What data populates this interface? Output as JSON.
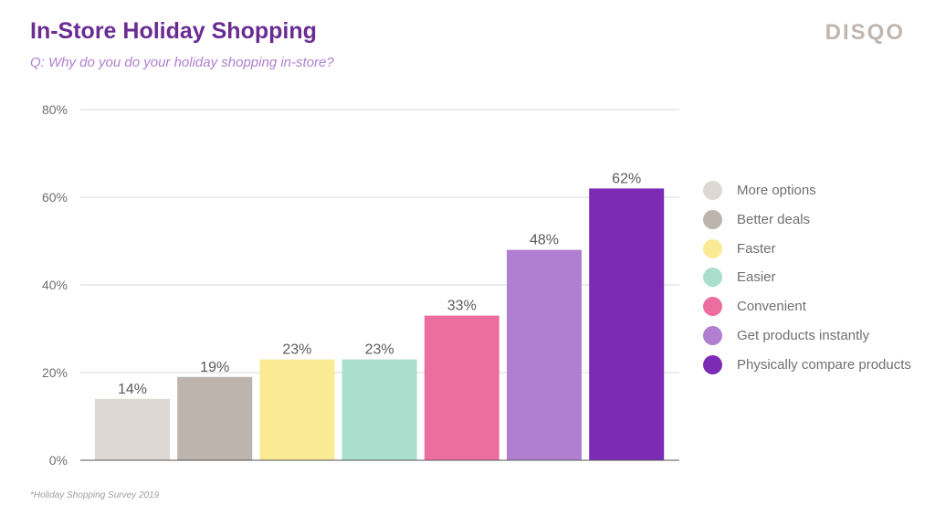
{
  "header": {
    "title": "In-Store Holiday Shopping",
    "subtitle": "Q: Why do you do your holiday shopping in-store?",
    "logo": "DISQO"
  },
  "footnote": "*Holiday Shopping Survey 2019",
  "chart_data": {
    "type": "bar",
    "title": "In-Store Holiday Shopping",
    "subtitle": "Q: Why do you do your holiday shopping in-store?",
    "categories": [
      "More options",
      "Better deals",
      "Faster",
      "Easier",
      "Convenient",
      "Get products instantly",
      "Physically compare products"
    ],
    "values": [
      14,
      19,
      23,
      23,
      33,
      48,
      62
    ],
    "value_labels": [
      "14%",
      "19%",
      "23%",
      "23%",
      "33%",
      "48%",
      "62%"
    ],
    "colors": [
      "#ded8d4",
      "#bcb4ad",
      "#faea93",
      "#a9dfcc",
      "#ec6ea0",
      "#b07fd2",
      "#7b2bb5"
    ],
    "ylim": [
      0,
      80
    ],
    "yticks": [
      0,
      20,
      40,
      60,
      80
    ],
    "ytick_labels": [
      "0%",
      "20%",
      "40%",
      "60%",
      "80%"
    ],
    "xlabel": "",
    "ylabel": "",
    "grid": true,
    "legend": "right"
  }
}
